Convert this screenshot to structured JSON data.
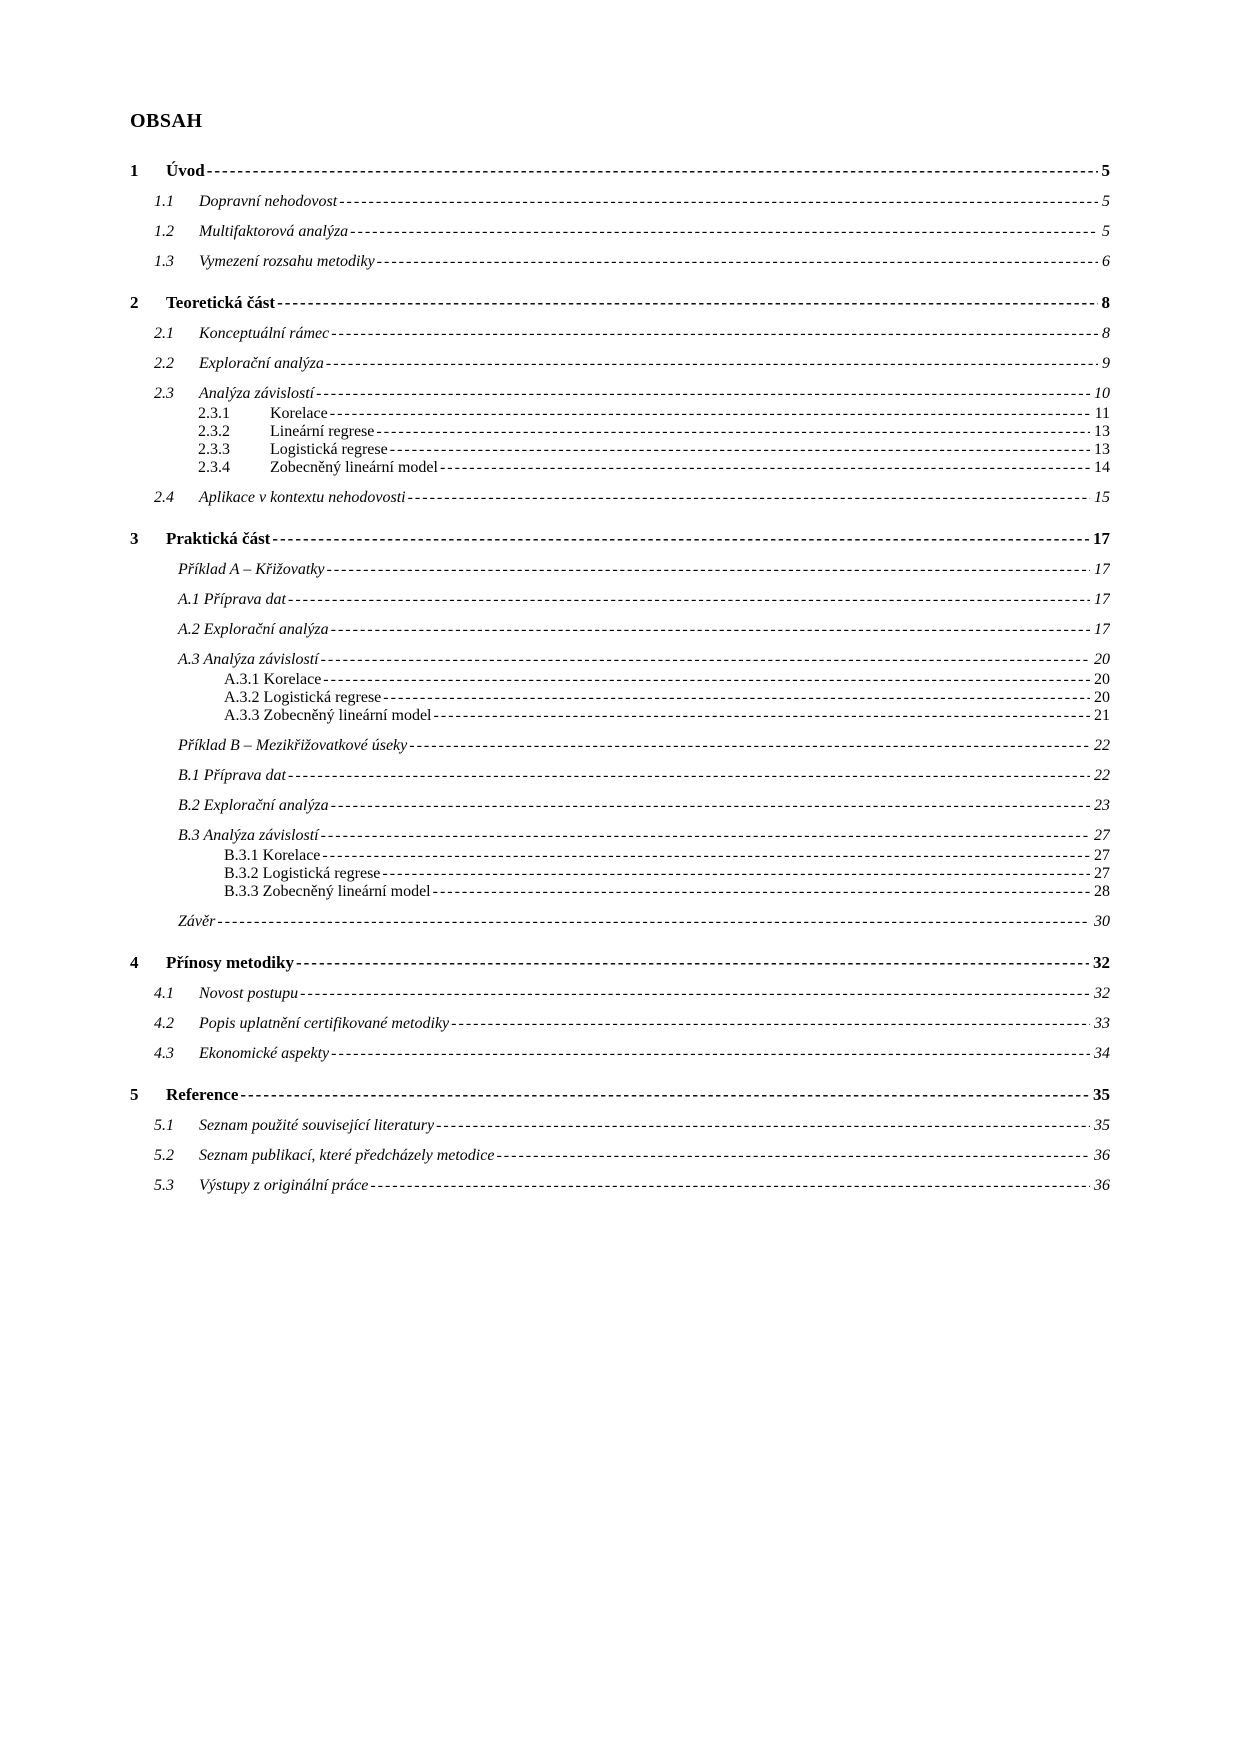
{
  "title": "OBSAH",
  "entries": [
    {
      "level": "level1 first",
      "num": "1",
      "label": "Úvod",
      "page": "5",
      "pageItalic": false
    },
    {
      "level": "level2",
      "num": "1.1",
      "label": "Dopravní nehodovost",
      "page": "5",
      "pageItalic": true
    },
    {
      "level": "level2",
      "num": "1.2",
      "label": "Multifaktorová analýza",
      "page": "5",
      "pageItalic": true
    },
    {
      "level": "level2",
      "num": "1.3",
      "label": "Vymezení rozsahu metodiky",
      "page": "6",
      "pageItalic": true
    },
    {
      "level": "level1",
      "num": "2",
      "label": "Teoretická část",
      "page": "8",
      "pageItalic": false
    },
    {
      "level": "level2",
      "num": "2.1",
      "label": "Konceptuální rámec",
      "page": "8",
      "pageItalic": true
    },
    {
      "level": "level2",
      "num": "2.2",
      "label": "Explorační analýza",
      "page": "9",
      "pageItalic": true
    },
    {
      "level": "level2",
      "num": "2.3",
      "label": "Analýza závislostí",
      "page": "10",
      "pageItalic": true
    },
    {
      "level": "level3",
      "num": "2.3.1",
      "label": "Korelace",
      "page": "11",
      "pageItalic": false
    },
    {
      "level": "level3",
      "num": "2.3.2",
      "label": "Lineární regrese",
      "page": "13",
      "pageItalic": false
    },
    {
      "level": "level3",
      "num": "2.3.3",
      "label": "Logistická regrese",
      "page": "13",
      "pageItalic": false
    },
    {
      "level": "level3",
      "num": "2.3.4",
      "label": "Zobecněný lineární model",
      "page": "14",
      "pageItalic": false
    },
    {
      "level": "level2",
      "num": "2.4",
      "label": "Aplikace v kontextu nehodovosti",
      "page": "15",
      "pageItalic": true
    },
    {
      "level": "level1",
      "num": "3",
      "label": "Praktická část",
      "page": "17",
      "pageItalic": false
    },
    {
      "level": "level2b",
      "num": "",
      "label": "Příklad A – Křižovatky",
      "page": "17",
      "pageItalic": true
    },
    {
      "level": "level2b",
      "num": "",
      "label": "A.1 Příprava dat",
      "page": "17",
      "pageItalic": true
    },
    {
      "level": "level2b",
      "num": "",
      "label": "A.2 Explorační analýza",
      "page": "17",
      "pageItalic": true
    },
    {
      "level": "level2b",
      "num": "",
      "label": "A.3 Analýza závislostí",
      "page": "20",
      "pageItalic": true
    },
    {
      "level": "level3b",
      "num": "",
      "label": "A.3.1 Korelace",
      "page": "20",
      "pageItalic": false
    },
    {
      "level": "level3b",
      "num": "",
      "label": "A.3.2 Logistická regrese",
      "page": "20",
      "pageItalic": false
    },
    {
      "level": "level3b",
      "num": "",
      "label": "A.3.3 Zobecněný lineární model",
      "page": "21",
      "pageItalic": false
    },
    {
      "level": "level2b",
      "num": "",
      "label": "Příklad B – Mezikřižovatkové úseky",
      "page": "22",
      "pageItalic": true
    },
    {
      "level": "level2b",
      "num": "",
      "label": "B.1 Příprava dat",
      "page": "22",
      "pageItalic": true
    },
    {
      "level": "level2b",
      "num": "",
      "label": "B.2 Explorační analýza",
      "page": "23",
      "pageItalic": true
    },
    {
      "level": "level2b",
      "num": "",
      "label": "B.3 Analýza závislostí",
      "page": "27",
      "pageItalic": true
    },
    {
      "level": "level3b",
      "num": "",
      "label": "B.3.1 Korelace",
      "page": "27",
      "pageItalic": false
    },
    {
      "level": "level3b",
      "num": "",
      "label": "B.3.2 Logistická regrese",
      "page": "27",
      "pageItalic": false
    },
    {
      "level": "level3b",
      "num": "",
      "label": "B.3.3 Zobecněný lineární model",
      "page": "28",
      "pageItalic": false
    },
    {
      "level": "level2b",
      "num": "",
      "label": "Závěr",
      "page": "30",
      "pageItalic": true
    },
    {
      "level": "level1",
      "num": "4",
      "label": "Přínosy metodiky",
      "page": "32",
      "pageItalic": false
    },
    {
      "level": "level2",
      "num": "4.1",
      "label": "Novost postupu",
      "page": "32",
      "pageItalic": true
    },
    {
      "level": "level2",
      "num": "4.2",
      "label": "Popis uplatnění certifikované metodiky",
      "page": "33",
      "pageItalic": true
    },
    {
      "level": "level2",
      "num": "4.3",
      "label": "Ekonomické aspekty",
      "page": "34",
      "pageItalic": true
    },
    {
      "level": "level1",
      "num": "5",
      "label": "Reference",
      "page": "35",
      "pageItalic": false
    },
    {
      "level": "level2",
      "num": "5.1",
      "label": "Seznam použité související literatury",
      "page": "35",
      "pageItalic": true
    },
    {
      "level": "level2",
      "num": "5.2",
      "label": "Seznam publikací, které předcházely metodice",
      "page": "36",
      "pageItalic": true
    },
    {
      "level": "level2",
      "num": "5.3",
      "label": "Výstupy z originální práce",
      "page": "36",
      "pageItalic": true
    }
  ]
}
